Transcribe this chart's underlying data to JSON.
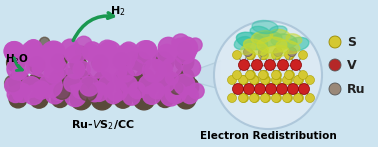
{
  "bg_color": "#cde4f0",
  "title_right": "Electron Redistribution",
  "label_h2o": "H$_2$O",
  "label_h2": "H$_2$",
  "legend_labels": [
    "S",
    "V",
    "Ru"
  ],
  "legend_colors": [
    "#d4c832",
    "#b52828",
    "#9a8878"
  ],
  "arrow_color": "#1a9850",
  "slab_color_purple": "#c050c0",
  "slab_color_dark": "#5a4a3a",
  "circle_fill": "#ddeaf4",
  "circle_edge": "#aac4d8",
  "fig_width": 3.78,
  "fig_height": 1.47,
  "dpi": 100,
  "cone_color": "#b8d0e0",
  "v_col": "#cc2222",
  "s_col": "#d4c832",
  "ru_col": "#9a8878",
  "bond_col": "#888888",
  "teal_col": "#30c0a8",
  "yellow_col": "#c8d830"
}
